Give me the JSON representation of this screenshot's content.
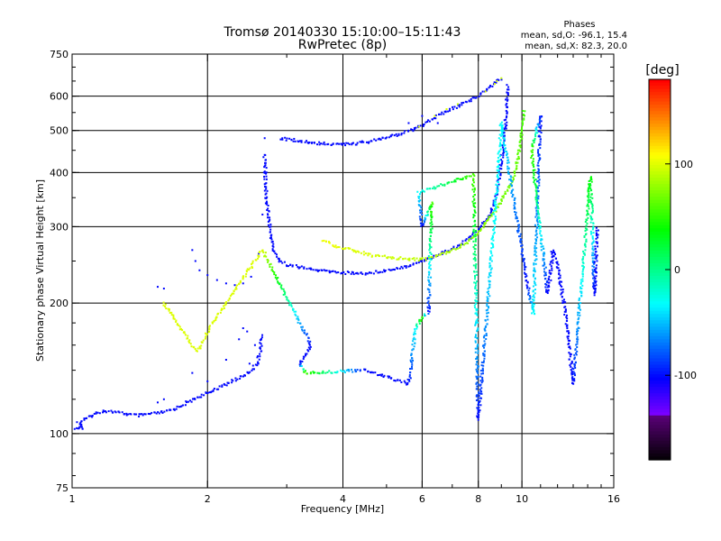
{
  "chart_data": {
    "type": "scatter",
    "title": "Tromsø 20140330 15:10:00–15:11:43",
    "subtitle": "RwPretec (8p)",
    "xlabel": "Frequency [MHz]",
    "ylabel": "Stationary phase Virtual Height [km]",
    "x_scale": "log",
    "y_scale": "log",
    "xlim": [
      1,
      16
    ],
    "ylim": [
      75,
      750
    ],
    "x_ticks": [
      1,
      2,
      4,
      6,
      8,
      10,
      16
    ],
    "x_tick_labels": [
      "1",
      "2",
      "4",
      "6",
      "8",
      "10",
      "16"
    ],
    "y_ticks": [
      75,
      100,
      200,
      300,
      400,
      500,
      600,
      750
    ],
    "y_tick_labels": [
      "75",
      "100",
      "200",
      "300",
      "400",
      "500",
      "600",
      "750"
    ],
    "grid": true,
    "info_header": "Phases",
    "info_lines": [
      "mean, sd,O: -96.1, 15.4",
      "mean, sd,X:  82.3, 20.0"
    ],
    "colorbar": {
      "label": "[deg]",
      "range": [
        -180,
        180
      ],
      "ticks": [
        100,
        0,
        -100
      ],
      "tick_labels": [
        "100",
        "0",
        "-100"
      ]
    },
    "series": [
      {
        "trace": "low_E_branch",
        "points": [
          [
            1.02,
            102,
            -100
          ],
          [
            1.04,
            104,
            -100
          ],
          [
            1.06,
            103,
            -100
          ],
          [
            1.03,
            106,
            -100
          ],
          [
            1.17,
            113,
            -100
          ],
          [
            1.25,
            112,
            -100
          ],
          [
            1.32,
            111,
            -100
          ],
          [
            1.4,
            110,
            -100
          ],
          [
            1.5,
            111,
            -100
          ],
          [
            1.6,
            112,
            -100
          ],
          [
            1.7,
            114,
            -100
          ],
          [
            1.8,
            118,
            -100
          ],
          [
            1.9,
            121,
            -100
          ],
          [
            2.0,
            124,
            -100
          ],
          [
            2.1,
            127,
            -100
          ],
          [
            2.2,
            130,
            -100
          ],
          [
            2.3,
            133,
            -100
          ],
          [
            2.4,
            136,
            -100
          ],
          [
            2.5,
            140,
            -100
          ],
          [
            2.58,
            145,
            -100
          ],
          [
            2.62,
            155,
            -100
          ],
          [
            2.64,
            170,
            -100
          ]
        ]
      },
      {
        "trace": "scatter_lower",
        "points": [
          [
            1.55,
            118,
            -100
          ],
          [
            1.6,
            120,
            -100
          ],
          [
            1.85,
            138,
            -100
          ],
          [
            2.0,
            132,
            -100
          ],
          [
            2.2,
            148,
            -100
          ],
          [
            2.35,
            165,
            -100
          ],
          [
            2.4,
            175,
            -100
          ],
          [
            2.48,
            145,
            -100
          ],
          [
            2.55,
            160,
            -100
          ],
          [
            1.55,
            218,
            -100
          ],
          [
            1.6,
            216,
            -100
          ],
          [
            2.45,
            172,
            -100
          ]
        ]
      },
      {
        "trace": "F_cusp_lower",
        "points": [
          [
            1.85,
            265,
            -100
          ],
          [
            1.88,
            250,
            -100
          ],
          [
            1.92,
            238,
            -100
          ],
          [
            2.0,
            232,
            -100
          ],
          [
            2.1,
            226,
            -100
          ],
          [
            2.2,
            222,
            -100
          ],
          [
            2.3,
            220,
            -100
          ],
          [
            2.4,
            222,
            -100
          ],
          [
            2.5,
            230,
            -100
          ],
          [
            2.6,
            260,
            -100
          ],
          [
            2.65,
            320,
            -100
          ],
          [
            2.67,
            400,
            -100
          ],
          [
            2.68,
            480,
            -100
          ]
        ]
      },
      {
        "trace": "F_cusp_upper",
        "points": [
          [
            2.68,
            440,
            -100
          ],
          [
            2.7,
            350,
            -100
          ],
          [
            2.75,
            300,
            -100
          ],
          [
            2.8,
            265,
            -100
          ],
          [
            2.9,
            250,
            -100
          ],
          [
            3.0,
            245,
            -100
          ],
          [
            3.2,
            242,
            -100
          ],
          [
            3.5,
            238,
            -100
          ],
          [
            4.0,
            235,
            -100
          ],
          [
            4.5,
            234,
            -100
          ],
          [
            5.0,
            238,
            -100
          ],
          [
            5.5,
            243,
            -100
          ],
          [
            6.0,
            250,
            -100
          ],
          [
            6.5,
            258,
            -100
          ],
          [
            7.0,
            267,
            -100
          ],
          [
            7.5,
            278,
            -100
          ],
          [
            8.0,
            295,
            -100
          ],
          [
            8.5,
            320,
            -100
          ],
          [
            8.8,
            360,
            -100
          ],
          [
            9.0,
            420,
            -100
          ],
          [
            9.2,
            520,
            -100
          ],
          [
            9.3,
            640,
            -100
          ]
        ]
      },
      {
        "trace": "X_branch",
        "points": [
          [
            3.6,
            280,
            105
          ],
          [
            3.8,
            272,
            105
          ],
          [
            4.0,
            268,
            100
          ],
          [
            4.3,
            263,
            100
          ],
          [
            4.6,
            258,
            100
          ],
          [
            5.0,
            255,
            95
          ],
          [
            5.5,
            253,
            95
          ],
          [
            6.0,
            252,
            90
          ],
          [
            6.5,
            257,
            90
          ],
          [
            7.0,
            265,
            85
          ],
          [
            7.5,
            275,
            80
          ],
          [
            8.0,
            290,
            80
          ],
          [
            8.5,
            315,
            75
          ],
          [
            9.0,
            345,
            70
          ],
          [
            9.5,
            380,
            70
          ],
          [
            9.8,
            430,
            65
          ],
          [
            10.0,
            500,
            60
          ],
          [
            10.1,
            560,
            55
          ]
        ]
      },
      {
        "trace": "upper_F2",
        "points": [
          [
            2.9,
            480,
            -100
          ],
          [
            3.1,
            475,
            -100
          ],
          [
            3.4,
            468,
            -100
          ],
          [
            3.8,
            465,
            -100
          ],
          [
            4.2,
            465,
            -100
          ],
          [
            4.6,
            472,
            -100
          ],
          [
            5.0,
            480,
            -100
          ],
          [
            5.4,
            492,
            -100
          ],
          [
            5.8,
            505,
            -100
          ],
          [
            6.2,
            525,
            -100
          ],
          [
            6.6,
            545,
            -100
          ],
          [
            7.0,
            560,
            -100
          ],
          [
            7.5,
            580,
            -100
          ],
          [
            8.0,
            600,
            -100
          ],
          [
            8.5,
            630,
            -100
          ],
          [
            9.0,
            660,
            -100
          ]
        ]
      },
      {
        "trace": "scatter_upper",
        "points": [
          [
            6.4,
            540,
            100
          ],
          [
            6.8,
            560,
            100
          ],
          [
            7.2,
            575,
            95
          ],
          [
            8.3,
            615,
            100
          ],
          [
            8.7,
            640,
            100
          ],
          [
            8.8,
            650,
            100
          ],
          [
            9.0,
            660,
            95
          ],
          [
            5.9,
            510,
            100
          ],
          [
            6.0,
            540,
            -100
          ],
          [
            5.6,
            520,
            -100
          ],
          [
            6.5,
            520,
            -100
          ]
        ]
      },
      {
        "trace": "isolated",
        "points": [
          [
            1.6,
            200,
            100
          ],
          [
            1.85,
            160,
            100
          ],
          [
            1.9,
            155,
            100
          ],
          [
            2.05,
            180,
            100
          ],
          [
            2.65,
            265,
            100
          ],
          [
            3.4,
            160,
            -100
          ],
          [
            3.2,
            145,
            -100
          ],
          [
            3.3,
            138,
            60
          ],
          [
            4.5,
            140,
            -100
          ],
          [
            5.6,
            130,
            -100
          ],
          [
            5.8,
            175,
            -30
          ],
          [
            6.0,
            185,
            60
          ],
          [
            6.2,
            190,
            -100
          ],
          [
            6.3,
            340,
            60
          ],
          [
            6.0,
            300,
            -100
          ],
          [
            5.9,
            360,
            -30
          ],
          [
            7.8,
            395,
            60
          ],
          [
            8.0,
            108,
            -100
          ],
          [
            8.6,
            270,
            -30
          ],
          [
            9.0,
            520,
            -30
          ],
          [
            10.3,
            220,
            -100
          ],
          [
            10.6,
            188,
            -30
          ],
          [
            11.0,
            540,
            -100
          ],
          [
            10.5,
            450,
            60
          ],
          [
            11.4,
            210,
            -100
          ],
          [
            11.5,
            220,
            -100
          ],
          [
            11.7,
            265,
            -100
          ],
          [
            12.0,
            245,
            -100
          ],
          [
            12.5,
            190,
            -100
          ],
          [
            13.0,
            130,
            -100
          ],
          [
            14.2,
            390,
            40
          ],
          [
            14.5,
            210,
            -100
          ],
          [
            14.7,
            300,
            -100
          ]
        ]
      }
    ]
  }
}
